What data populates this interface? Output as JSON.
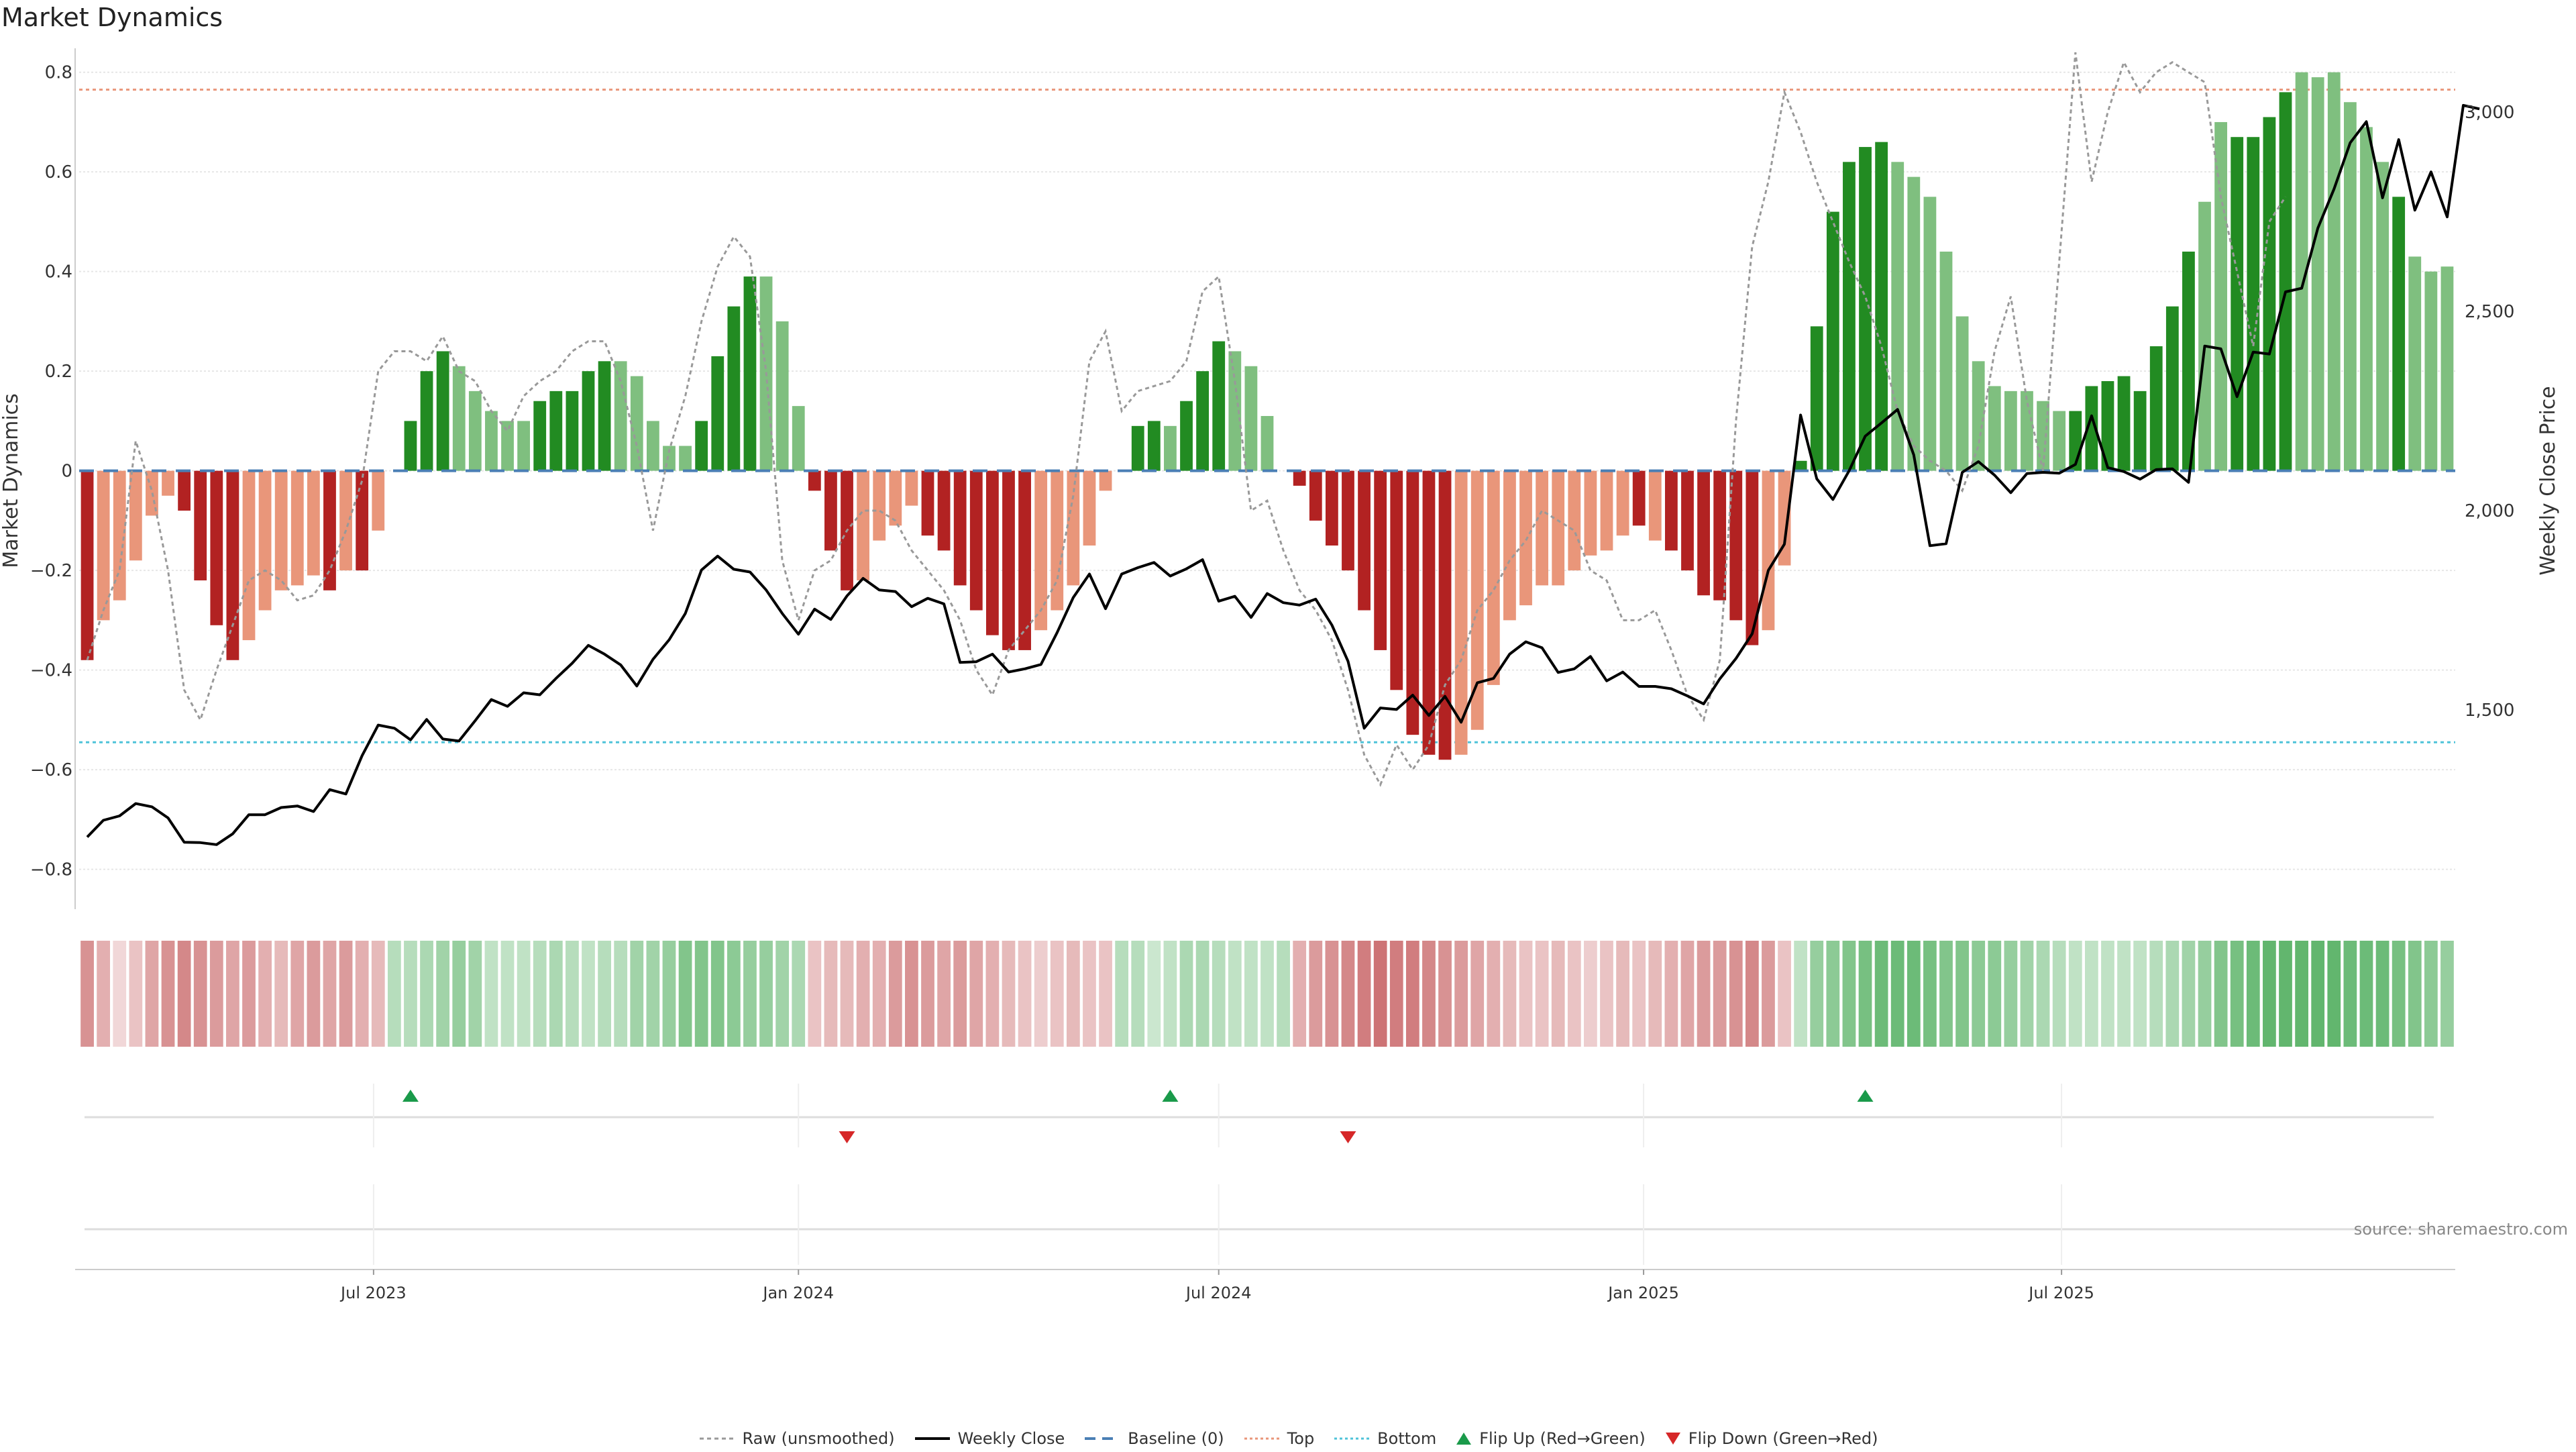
{
  "title": "Market Dynamics",
  "source": "source: sharemaestro.com",
  "chart_data": {
    "type": "bar",
    "title": "Market Dynamics",
    "ylabel_left": "Market Dynamics",
    "ylabel_right": "Weekly Close Price",
    "ylim_left": [
      -0.88,
      0.84
    ],
    "ylim_right": [
      1000,
      3150
    ],
    "yticks_left": [
      -0.8,
      -0.6,
      -0.4,
      -0.2,
      0,
      0.2,
      0.4,
      0.6,
      0.8
    ],
    "yticks_left_labels": [
      "−0.8",
      "−0.6",
      "−0.4",
      "−0.2",
      "0",
      "0.2",
      "0.4",
      "0.6",
      "0.8"
    ],
    "yticks_right": [
      1500,
      2000,
      2500,
      3000
    ],
    "yticks_right_labels": [
      "1,500",
      "2,000",
      "2,500",
      "3,000"
    ],
    "x_tick_labels": [
      "Jul 2023",
      "Jan 2024",
      "Jul 2024",
      "Jan 2025",
      "Jul 2025"
    ],
    "x_tick_dates": [
      "2023-07-01",
      "2024-01-01",
      "2024-07-01",
      "2025-01-01",
      "2025-07-01"
    ],
    "first_week": "2023-02-27",
    "top_level": 0.765,
    "bottom_level": -0.545,
    "baseline": 0,
    "grid": true,
    "legend_position": "bottom",
    "colors": {
      "strong_pos": "#228b22",
      "weak_pos": "#7fbf7f",
      "strong_neg": "#b22222",
      "weak_neg": "#e9967a",
      "raw_line": "#999999",
      "close_line": "#000000",
      "baseline": "#4a7fb5",
      "top": "#e9967a",
      "bottom": "#4fc3d9",
      "flip_up": "#1a9a4a",
      "flip_down": "#d62728"
    },
    "bars": [
      -0.38,
      -0.3,
      -0.26,
      -0.18,
      -0.09,
      -0.05,
      -0.08,
      -0.22,
      -0.31,
      -0.38,
      -0.34,
      -0.28,
      -0.24,
      -0.23,
      -0.21,
      -0.24,
      -0.2,
      -0.2,
      -0.12,
      0,
      0.1,
      0.2,
      0.24,
      0.21,
      0.16,
      0.12,
      0.1,
      0.1,
      0.14,
      0.16,
      0.16,
      0.2,
      0.22,
      0.22,
      0.19,
      0.1,
      0.05,
      0.05,
      0.1,
      0.23,
      0.33,
      0.39,
      0.39,
      0.3,
      0.13,
      -0.04,
      -0.16,
      -0.24,
      -0.22,
      -0.14,
      -0.11,
      -0.07,
      -0.13,
      -0.16,
      -0.23,
      -0.28,
      -0.33,
      -0.36,
      -0.36,
      -0.32,
      -0.28,
      -0.23,
      -0.15,
      -0.04,
      0,
      0.09,
      0.1,
      0.09,
      0.14,
      0.2,
      0.26,
      0.24,
      0.21,
      0.11,
      0,
      -0.03,
      -0.1,
      -0.15,
      -0.2,
      -0.28,
      -0.36,
      -0.44,
      -0.53,
      -0.57,
      -0.58,
      -0.57,
      -0.52,
      -0.43,
      -0.3,
      -0.27,
      -0.23,
      -0.23,
      -0.2,
      -0.17,
      -0.16,
      -0.13,
      -0.11,
      -0.14,
      -0.16,
      -0.2,
      -0.25,
      -0.26,
      -0.3,
      -0.35,
      -0.32,
      -0.19,
      0.02,
      0.29,
      0.52,
      0.62,
      0.65,
      0.66,
      0.62,
      0.59,
      0.55,
      0.44,
      0.31,
      0.22,
      0.17,
      0.16,
      0.16,
      0.14,
      0.12,
      0.12,
      0.17,
      0.18,
      0.19,
      0.16,
      0.25,
      0.33,
      0.44,
      0.54,
      0.7,
      0.67,
      0.67,
      0.71,
      0.76,
      0.8,
      0.79,
      0.8,
      0.74,
      0.69,
      0.62,
      0.55,
      0.43,
      0.4,
      0.41
    ],
    "bar_strong": [
      1,
      0,
      0,
      0,
      0,
      0,
      1,
      1,
      1,
      1,
      0,
      0,
      0,
      0,
      0,
      1,
      0,
      1,
      0,
      0,
      1,
      1,
      1,
      0,
      0,
      0,
      0,
      0,
      1,
      1,
      1,
      1,
      1,
      0,
      0,
      0,
      0,
      0,
      1,
      1,
      1,
      1,
      0,
      0,
      0,
      1,
      1,
      1,
      0,
      0,
      0,
      0,
      1,
      1,
      1,
      1,
      1,
      1,
      1,
      0,
      0,
      0,
      0,
      0,
      0,
      1,
      1,
      0,
      1,
      1,
      1,
      0,
      0,
      0,
      0,
      1,
      1,
      1,
      1,
      1,
      1,
      1,
      1,
      1,
      1,
      0,
      0,
      0,
      0,
      0,
      0,
      0,
      0,
      0,
      0,
      0,
      1,
      0,
      1,
      1,
      1,
      1,
      1,
      1,
      0,
      0,
      1,
      1,
      1,
      1,
      1,
      1,
      0,
      0,
      0,
      0,
      0,
      0,
      0,
      0,
      0,
      0,
      0,
      1,
      1,
      1,
      1,
      1,
      1,
      1,
      1,
      0,
      0,
      1,
      1,
      1,
      1,
      0,
      0,
      0,
      0,
      0,
      0,
      1
    ],
    "raw": [
      -0.38,
      -0.28,
      -0.2,
      0.06,
      -0.04,
      -0.2,
      -0.44,
      -0.5,
      -0.4,
      -0.31,
      -0.22,
      -0.2,
      -0.22,
      -0.26,
      -0.25,
      -0.2,
      -0.12,
      -0.02,
      0.2,
      0.24,
      0.24,
      0.22,
      0.27,
      0.2,
      0.18,
      0.12,
      0.08,
      0.15,
      0.18,
      0.2,
      0.24,
      0.26,
      0.26,
      0.18,
      0.05,
      -0.12,
      0.04,
      0.15,
      0.3,
      0.41,
      0.47,
      0.43,
      0.2,
      -0.18,
      -0.3,
      -0.2,
      -0.18,
      -0.12,
      -0.08,
      -0.08,
      -0.1,
      -0.16,
      -0.2,
      -0.24,
      -0.3,
      -0.4,
      -0.45,
      -0.36,
      -0.32,
      -0.28,
      -0.22,
      -0.05,
      0.22,
      0.28,
      0.12,
      0.16,
      0.17,
      0.18,
      0.22,
      0.36,
      0.39,
      0.18,
      -0.08,
      -0.06,
      -0.16,
      -0.24,
      -0.28,
      -0.34,
      -0.44,
      -0.57,
      -0.63,
      -0.55,
      -0.6,
      -0.55,
      -0.43,
      -0.38,
      -0.28,
      -0.24,
      -0.18,
      -0.14,
      -0.08,
      -0.1,
      -0.12,
      -0.2,
      -0.22,
      -0.3,
      -0.3,
      -0.28,
      -0.36,
      -0.45,
      -0.5,
      -0.38,
      0.1,
      0.45,
      0.58,
      0.76,
      0.68,
      0.58,
      0.5,
      0.42,
      0.35,
      0.25,
      0.12,
      0.05,
      0.02,
      0.0,
      -0.04,
      0.05,
      0.24,
      0.35,
      0.14,
      0.0,
      0.42,
      0.84,
      0.58,
      0.72,
      0.82,
      0.76,
      0.8,
      0.82,
      0.8,
      0.78,
      0.55,
      0.4,
      0.25,
      0.5,
      0.55
    ],
    "close": [
      1181,
      1223,
      1234,
      1265,
      1257,
      1229,
      1168,
      1167,
      1162,
      1189,
      1237,
      1237,
      1255,
      1259,
      1245,
      1300,
      1289,
      1385,
      1462,
      1454,
      1425,
      1476,
      1427,
      1422,
      1473,
      1526,
      1509,
      1543,
      1538,
      1579,
      1617,
      1662,
      1640,
      1613,
      1560,
      1627,
      1676,
      1742,
      1851,
      1886,
      1853,
      1846,
      1801,
      1742,
      1690,
      1753,
      1727,
      1786,
      1830,
      1801,
      1797,
      1759,
      1780,
      1766,
      1619,
      1621,
      1640,
      1595,
      1603,
      1614,
      1694,
      1782,
      1841,
      1754,
      1841,
      1857,
      1870,
      1836,
      1854,
      1877,
      1773,
      1785,
      1732,
      1792,
      1769,
      1763,
      1778,
      1713,
      1622,
      1454,
      1505,
      1501,
      1537,
      1486,
      1534,
      1469,
      1568,
      1579,
      1640,
      1671,
      1656,
      1594,
      1603,
      1634,
      1573,
      1595,
      1559,
      1559,
      1553,
      1535,
      1515,
      1578,
      1629,
      1691,
      1850,
      1916,
      2240,
      2080,
      2028,
      2100,
      2187,
      2220,
      2254,
      2140,
      1912,
      1917,
      2096,
      2123,
      2089,
      2045,
      2093,
      2096,
      2094,
      2116,
      2238,
      2108,
      2098,
      2079,
      2103,
      2105,
      2071,
      2413,
      2406,
      2286,
      2398,
      2393,
      2549,
      2558,
      2709,
      2807,
      2923,
      2976,
      2785,
      2931,
      2754,
      2850,
      2737,
      3017,
      3008
    ],
    "heat_alpha": [
      0.55,
      0.4,
      0.2,
      0.3,
      0.45,
      0.55,
      0.6,
      0.55,
      0.5,
      0.45,
      0.5,
      0.4,
      0.35,
      0.45,
      0.5,
      0.45,
      0.5,
      0.4,
      0.35,
      0.35,
      0.35,
      0.4,
      0.45,
      0.5,
      0.45,
      0.3,
      0.3,
      0.3,
      0.35,
      0.4,
      0.35,
      0.3,
      0.35,
      0.35,
      0.45,
      0.45,
      0.5,
      0.6,
      0.6,
      0.6,
      0.55,
      0.5,
      0.5,
      0.45,
      0.4,
      0.3,
      0.35,
      0.35,
      0.4,
      0.4,
      0.5,
      0.55,
      0.5,
      0.45,
      0.5,
      0.45,
      0.4,
      0.35,
      0.3,
      0.25,
      0.3,
      0.35,
      0.3,
      0.3,
      0.35,
      0.35,
      0.25,
      0.3,
      0.4,
      0.4,
      0.35,
      0.3,
      0.3,
      0.3,
      0.35,
      0.4,
      0.5,
      0.55,
      0.6,
      0.65,
      0.7,
      0.65,
      0.65,
      0.6,
      0.55,
      0.5,
      0.45,
      0.4,
      0.35,
      0.3,
      0.3,
      0.35,
      0.3,
      0.25,
      0.3,
      0.35,
      0.3,
      0.35,
      0.4,
      0.45,
      0.5,
      0.5,
      0.55,
      0.6,
      0.5,
      0.3,
      0.3,
      0.5,
      0.55,
      0.6,
      0.65,
      0.7,
      0.7,
      0.7,
      0.65,
      0.6,
      0.6,
      0.55,
      0.55,
      0.5,
      0.45,
      0.4,
      0.35,
      0.3,
      0.3,
      0.3,
      0.3,
      0.3,
      0.35,
      0.4,
      0.45,
      0.5,
      0.6,
      0.65,
      0.7,
      0.75,
      0.75,
      0.75,
      0.75,
      0.75,
      0.7,
      0.7,
      0.7,
      0.65,
      0.6,
      0.55,
      0.5,
      0.45
    ],
    "flip_up_weeks": [
      20,
      67,
      110
    ],
    "flip_down_weeks": [
      47,
      78
    ]
  },
  "legend": {
    "raw": "Raw (unsmoothed)",
    "close": "Weekly Close",
    "baseline": "Baseline (0)",
    "top": "Top",
    "bottom": "Bottom",
    "flip_up": "Flip Up (Red→Green)",
    "flip_down": "Flip Down (Green→Red)"
  }
}
